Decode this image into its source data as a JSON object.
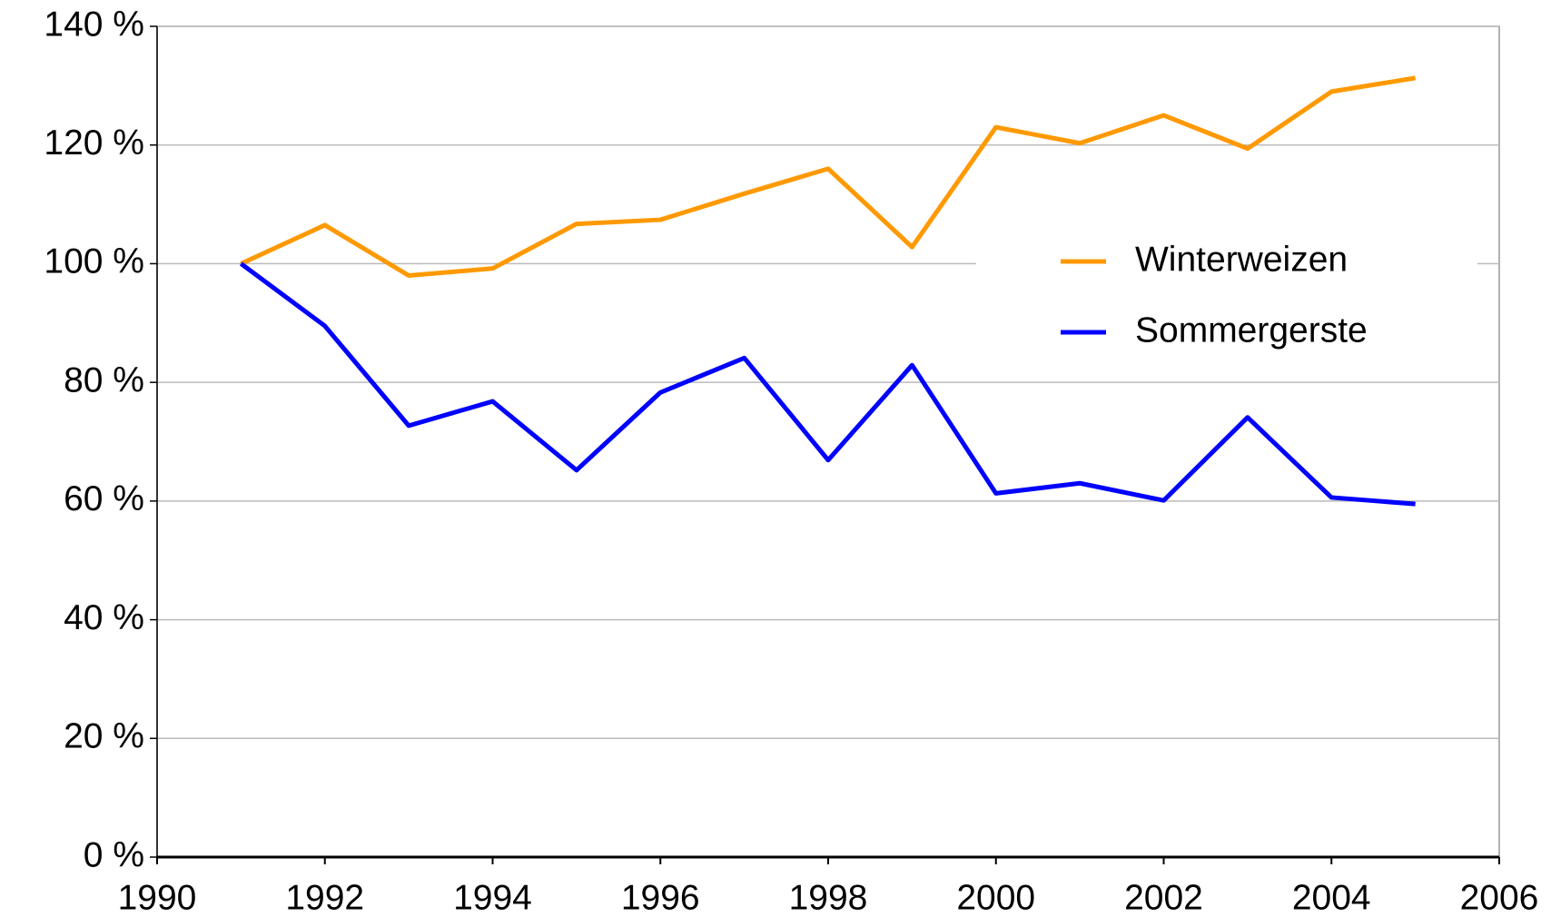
{
  "chart_data": {
    "type": "line",
    "x": [
      1991,
      1992,
      1993,
      1994,
      1995,
      1996,
      1997,
      1998,
      1999,
      2000,
      2001,
      2002,
      2003,
      2004,
      2005
    ],
    "series": [
      {
        "name": "Winterweizen",
        "color": "#ff9900",
        "values": [
          100,
          106.5,
          98,
          99.2,
          106.7,
          107.4,
          111.8,
          116,
          102.8,
          123,
          120.3,
          125,
          119.4,
          129,
          131.3
        ]
      },
      {
        "name": "Sommergerste",
        "color": "#0000ff",
        "values": [
          100,
          89.5,
          72.7,
          76.8,
          65.2,
          78.3,
          84.1,
          66.9,
          82.9,
          61.3,
          63,
          60.1,
          74.1,
          60.6,
          59.5
        ]
      }
    ],
    "xlim": [
      1990,
      2006
    ],
    "xticks": [
      1990,
      1992,
      1994,
      1996,
      1998,
      2000,
      2002,
      2004,
      2006
    ],
    "ylim": [
      0,
      140
    ],
    "yticks": [
      {
        "value": 0,
        "label": "0 %"
      },
      {
        "value": 20,
        "label": "20 %"
      },
      {
        "value": 40,
        "label": "40 %"
      },
      {
        "value": 60,
        "label": "60 %"
      },
      {
        "value": 80,
        "label": "80 %"
      },
      {
        "value": 100,
        "label": "100 %"
      },
      {
        "value": 120,
        "label": "120 %"
      },
      {
        "value": 140,
        "label": "140 %"
      }
    ],
    "grid": true,
    "legend": "right"
  }
}
